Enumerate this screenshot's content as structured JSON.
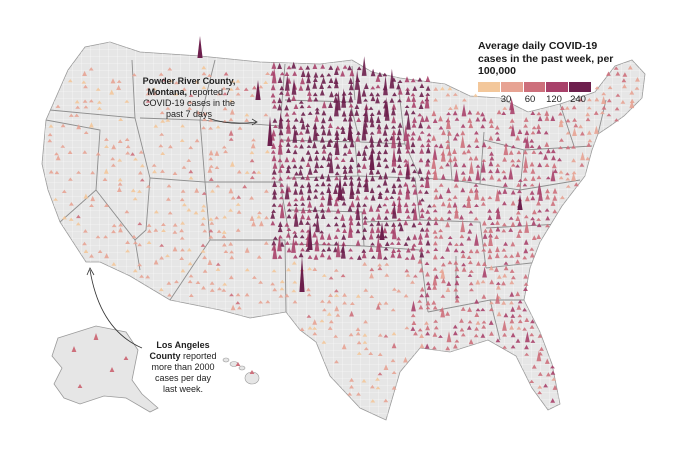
{
  "legend": {
    "title_line1": "Average daily COVID-19",
    "title_line2": "cases in the past week, per",
    "title_line3": "100,000",
    "ticks": [
      "30",
      "60",
      "120",
      "240"
    ],
    "colors": [
      "#f3c79a",
      "#e7a393",
      "#cd6f7b",
      "#a8416a",
      "#6d1f4d"
    ]
  },
  "annotations": {
    "powder_river": {
      "bold1": "Powder River County,",
      "bold2": "Montana,",
      "rest1": " reported 7",
      "line3": "COVID-19 cases in the",
      "line4": "past 7 days"
    },
    "los_angeles": {
      "bold1": "Los Angeles",
      "bold2": "County",
      "rest1": " reported",
      "line3": "more than 2000",
      "line4": "cases per day",
      "line5": "last week."
    }
  },
  "colors": {
    "land": "#e6e6e6",
    "county_border": "#ffffff",
    "state_border": "#8a8a8a"
  }
}
